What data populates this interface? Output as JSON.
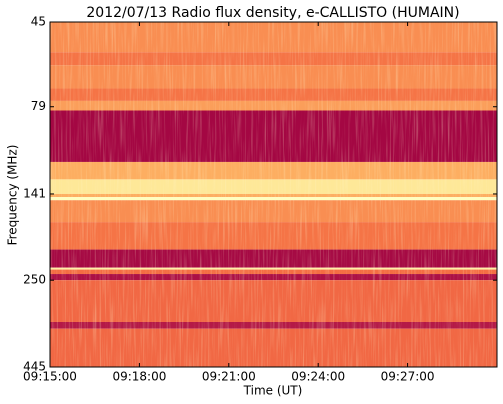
{
  "chart_data": {
    "type": "heatmap",
    "title": "2012/07/13  Radio flux density, e-CALLISTO (HUMAIN)",
    "xlabel": "Time (UT)",
    "ylabel": "Frequency (MHz)",
    "xlim": [
      "09:15:00",
      "09:30:00"
    ],
    "xticks": [
      "09:15:00",
      "09:18:00",
      "09:21:00",
      "09:24:00",
      "09:27:00"
    ],
    "ylim": [
      45,
      445
    ],
    "yticks": [
      45,
      79,
      141,
      250,
      445
    ],
    "log_y": true,
    "y_inverted": true,
    "colormap": [
      "#9e0142",
      "#d53e4f",
      "#f46d43",
      "#fdae61",
      "#fee08b",
      "#ffffbf"
    ],
    "bands": [
      {
        "low": 45,
        "high": 55,
        "intensity": 0.5
      },
      {
        "low": 55,
        "high": 60,
        "intensity": 0.42
      },
      {
        "low": 60,
        "high": 70,
        "intensity": 0.5
      },
      {
        "low": 70,
        "high": 76,
        "intensity": 0.42
      },
      {
        "low": 76,
        "high": 81,
        "intensity": 0.55
      },
      {
        "low": 81,
        "high": 114,
        "intensity": 0.02
      },
      {
        "low": 114,
        "high": 128,
        "intensity": 0.6
      },
      {
        "low": 128,
        "high": 141,
        "intensity": 0.85
      },
      {
        "low": 141,
        "high": 144,
        "intensity": 0.6
      },
      {
        "low": 144,
        "high": 147,
        "intensity": 1
      },
      {
        "low": 147,
        "high": 170,
        "intensity": 0.5
      },
      {
        "low": 170,
        "high": 204,
        "intensity": 0.42
      },
      {
        "low": 204,
        "high": 230,
        "intensity": 0.03
      },
      {
        "low": 230,
        "high": 233,
        "intensity": 0.9
      },
      {
        "low": 233,
        "high": 240,
        "intensity": 0.4
      },
      {
        "low": 240,
        "high": 250,
        "intensity": 0.05
      },
      {
        "low": 250,
        "high": 330,
        "intensity": 0.38
      },
      {
        "low": 330,
        "high": 345,
        "intensity": 0.08
      },
      {
        "low": 345,
        "high": 445,
        "intensity": 0.38
      }
    ]
  }
}
